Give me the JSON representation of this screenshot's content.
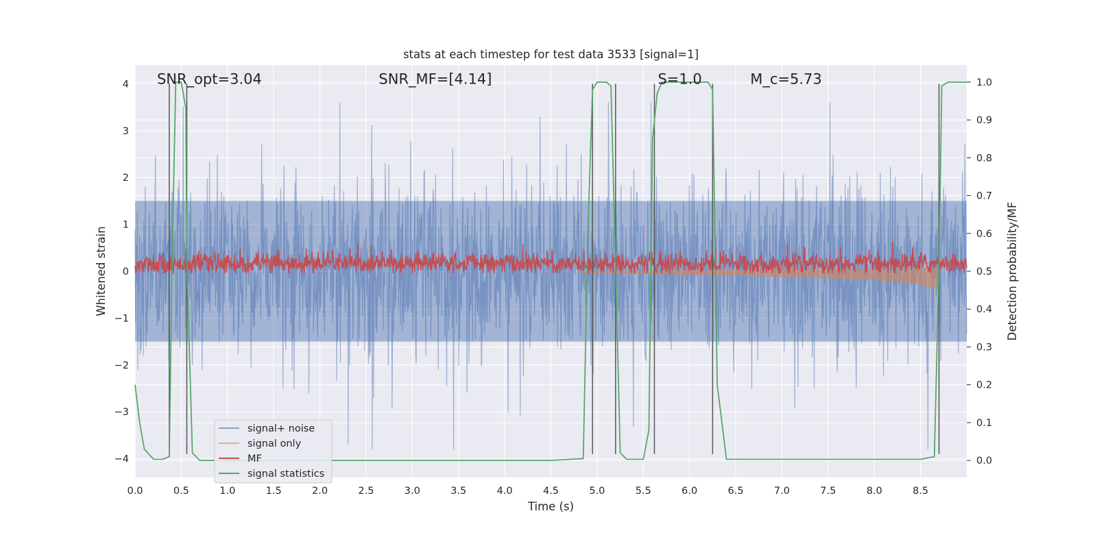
{
  "chart_data": {
    "type": "line",
    "title": "stats at each timestep for test data 3533 [signal=1]",
    "xlabel": "Time (s)",
    "ylabel_left": "Whitened strain",
    "ylabel_right": "Detection probability/MF",
    "xlim": [
      0,
      9.0
    ],
    "ylim_left": [
      -4.4,
      4.4
    ],
    "ylim_right": [
      -0.045,
      1.045
    ],
    "x_ticks": [
      0.0,
      0.5,
      1.0,
      1.5,
      2.0,
      2.5,
      3.0,
      3.5,
      4.0,
      4.5,
      5.0,
      5.5,
      6.0,
      6.5,
      7.0,
      7.5,
      8.0,
      8.5
    ],
    "x_tick_labels": [
      "0.0",
      "0.5",
      "1.0",
      "1.5",
      "2.0",
      "2.5",
      "3.0",
      "3.5",
      "4.0",
      "4.5",
      "5.0",
      "5.5",
      "6.0",
      "6.5",
      "7.0",
      "7.5",
      "8.0",
      "8.5"
    ],
    "y_left_ticks": [
      -4,
      -3,
      -2,
      -1,
      0,
      1,
      2,
      3,
      4
    ],
    "y_left_tick_labels": [
      "−4",
      "−3",
      "−2",
      "−1",
      "0",
      "1",
      "2",
      "3",
      "4"
    ],
    "y_right_ticks": [
      0.0,
      0.1,
      0.2,
      0.3,
      0.4,
      0.5,
      0.6,
      0.7,
      0.8,
      0.9,
      1.0
    ],
    "y_right_tick_labels": [
      "0.0",
      "0.1",
      "0.2",
      "0.3",
      "0.4",
      "0.5",
      "0.6",
      "0.7",
      "0.8",
      "0.9",
      "1.0"
    ],
    "grid": true,
    "legend_position": "lower-left",
    "annotations": [
      {
        "text": "SNR_opt=3.04",
        "x": 0.2
      },
      {
        "text": "SNR_MF=[4.14]",
        "x": 2.6
      },
      {
        "text": "S=1.0",
        "x": 5.62
      },
      {
        "text": "M_c=5.73",
        "x": 6.62
      }
    ],
    "vertical_lines_x": [
      0.37,
      0.56,
      4.95,
      5.2,
      5.62,
      6.25,
      8.7
    ],
    "series": [
      {
        "name": "signal+ noise",
        "axis": "left",
        "color": "#4c72b0",
        "description_stats": {
          "band_low": -1.5,
          "band_high": 1.5,
          "peak_max": 3.6,
          "peak_min": -3.8
        },
        "sample_rate_points": 1800
      },
      {
        "name": "signal only",
        "axis": "left",
        "color": "#dd8452",
        "envelope": {
          "x": [
            4.8,
            5.5,
            6.0,
            6.5,
            7.0,
            7.5,
            8.0,
            8.3,
            8.5,
            8.65,
            8.7
          ],
          "amplitude": [
            0.02,
            0.05,
            0.07,
            0.09,
            0.11,
            0.14,
            0.18,
            0.22,
            0.28,
            0.38,
            0.05
          ]
        }
      },
      {
        "name": "MF",
        "axis": "right",
        "color": "#c44e52",
        "description_stats": {
          "mean": 0.52,
          "min": 0.495,
          "max": 0.59
        }
      },
      {
        "name": "signal statistics",
        "axis": "right",
        "color": "#55a868",
        "x": [
          0.0,
          0.05,
          0.1,
          0.2,
          0.3,
          0.37,
          0.4,
          0.44,
          0.5,
          0.55,
          0.56,
          0.62,
          0.7,
          1.0,
          2.0,
          3.0,
          4.0,
          4.5,
          4.85,
          4.9,
          4.95,
          5.0,
          5.1,
          5.15,
          5.2,
          5.25,
          5.32,
          5.4,
          5.5,
          5.56,
          5.6,
          5.65,
          5.7,
          5.8,
          6.0,
          6.2,
          6.25,
          6.3,
          6.4,
          7.0,
          8.0,
          8.5,
          8.65,
          8.7,
          8.73,
          8.8,
          8.9,
          9.0
        ],
        "y": [
          0.2,
          0.1,
          0.03,
          0.003,
          0.003,
          0.01,
          0.52,
          1.0,
          1.0,
          0.93,
          0.52,
          0.02,
          0.0,
          0.0,
          0.0,
          0.0,
          0.0,
          0.0,
          0.005,
          0.6,
          0.98,
          1.0,
          1.0,
          0.99,
          0.52,
          0.02,
          0.003,
          0.003,
          0.003,
          0.08,
          0.85,
          0.97,
          1.0,
          1.0,
          1.0,
          1.0,
          0.98,
          0.2,
          0.003,
          0.003,
          0.003,
          0.003,
          0.01,
          0.52,
          0.99,
          1.0,
          1.0,
          1.0
        ]
      }
    ]
  }
}
